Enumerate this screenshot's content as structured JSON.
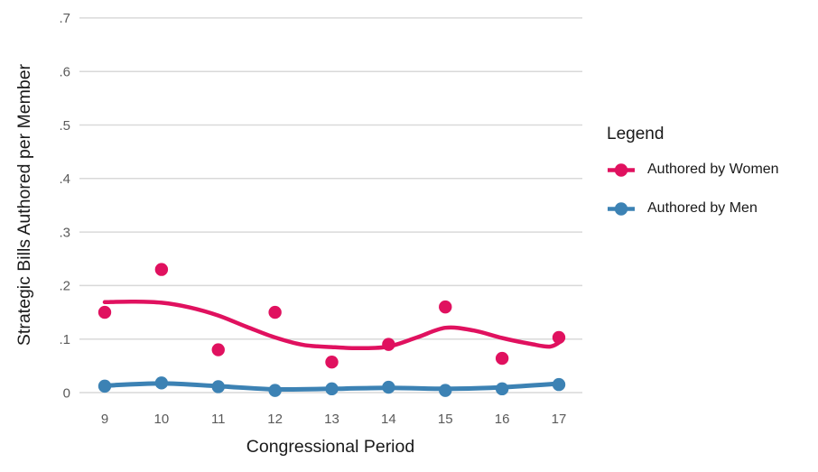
{
  "chart_data": {
    "type": "scatter",
    "subtype": "scatter points with lowess trend lines",
    "title": "",
    "xlabel": "Congressional Period",
    "ylabel": "Strategic Bills Authored per Member",
    "x": [
      9,
      10,
      11,
      12,
      13,
      14,
      15,
      16,
      17
    ],
    "xtick_labels": [
      "9",
      "10",
      "11",
      "12",
      "13",
      "14",
      "15",
      "16",
      "17"
    ],
    "ytick_labels": [
      ".7",
      ".6",
      ".5",
      ".4",
      ".3",
      ".2",
      ".1",
      "0"
    ],
    "ytick_values": [
      0.7,
      0.6,
      0.5,
      0.4,
      0.3,
      0.2,
      0.1,
      0
    ],
    "ylim": [
      0,
      0.7
    ],
    "grid": "horizontal only, light gray",
    "legend": {
      "title": "Legend",
      "position": "right"
    },
    "colors": {
      "women": "#e0115f",
      "men": "#3c82b4",
      "gridline": "#d9d9d9",
      "tick_text": "#5a5a5a",
      "axis_title_text": "#1a1a1a"
    },
    "series": [
      {
        "name": "Authored by Women",
        "color": "#e0115f",
        "points": [
          0.15,
          0.23,
          0.08,
          0.15,
          0.057,
          0.09,
          0.16,
          0.064,
          0.103
        ],
        "trend": {
          "x": [
            9,
            9.5,
            10,
            10.5,
            11,
            11.5,
            12,
            12.5,
            13,
            13.5,
            14,
            14.5,
            15,
            15.5,
            16,
            16.5,
            16.85,
            17.05
          ],
          "y": [
            0.169,
            0.17,
            0.168,
            0.159,
            0.144,
            0.123,
            0.103,
            0.089,
            0.085,
            0.083,
            0.086,
            0.103,
            0.121,
            0.116,
            0.102,
            0.091,
            0.086,
            0.097
          ]
        }
      },
      {
        "name": "Authored by Men",
        "color": "#3c82b4",
        "points": [
          0.012,
          0.018,
          0.011,
          0.004,
          0.007,
          0.01,
          0.004,
          0.007,
          0.015
        ],
        "trend": {
          "x": [
            9,
            10,
            11,
            12,
            13,
            14,
            15,
            16,
            17.05
          ],
          "y": [
            0.013,
            0.017,
            0.012,
            0.006,
            0.007,
            0.009,
            0.007,
            0.01,
            0.017
          ]
        }
      }
    ]
  }
}
